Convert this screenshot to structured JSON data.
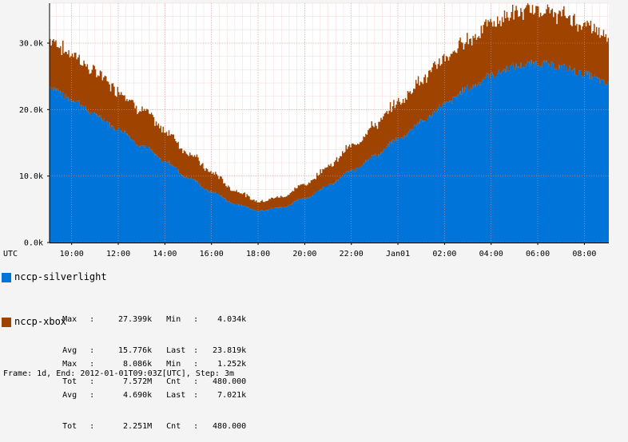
{
  "chart_data": {
    "type": "area",
    "stacked": true,
    "timezone_label": "UTC",
    "x_ticks": [
      "10:00",
      "12:00",
      "14:00",
      "16:00",
      "18:00",
      "20:00",
      "22:00",
      "Jan01",
      "02:00",
      "04:00",
      "06:00",
      "08:00"
    ],
    "y_ticks": [
      "0.0k",
      "10.0k",
      "20.0k",
      "30.0k"
    ],
    "ylim": [
      0,
      36000
    ],
    "grid": true,
    "x_start": "2011-12-31T09:03Z",
    "x_end": "2012-01-01T09:03Z",
    "series": [
      {
        "name": "nccp-silverlight",
        "color": "#0074d9",
        "points": [
          [
            "2011-12-31T09:03Z",
            23400
          ],
          [
            "2011-12-31T10:00Z",
            21500
          ],
          [
            "2011-12-31T11:00Z",
            19200
          ],
          [
            "2011-12-31T12:00Z",
            17000
          ],
          [
            "2011-12-31T13:00Z",
            14600
          ],
          [
            "2011-12-31T14:00Z",
            12200
          ],
          [
            "2011-12-31T15:00Z",
            9700
          ],
          [
            "2011-12-31T16:00Z",
            7600
          ],
          [
            "2011-12-31T17:00Z",
            5800
          ],
          [
            "2011-12-31T18:00Z",
            4800
          ],
          [
            "2011-12-31T19:00Z",
            5300
          ],
          [
            "2011-12-31T20:00Z",
            6700
          ],
          [
            "2011-12-31T21:00Z",
            8600
          ],
          [
            "2011-12-31T22:00Z",
            10800
          ],
          [
            "2011-12-31T23:00Z",
            13100
          ],
          [
            "2012-01-01T00:00Z",
            15600
          ],
          [
            "2012-01-01T01:00Z",
            18200
          ],
          [
            "2012-01-01T02:00Z",
            20800
          ],
          [
            "2012-01-01T03:00Z",
            23200
          ],
          [
            "2012-01-01T04:00Z",
            25200
          ],
          [
            "2012-01-01T05:00Z",
            26500
          ],
          [
            "2012-01-01T06:00Z",
            27000
          ],
          [
            "2012-01-01T07:00Z",
            26400
          ],
          [
            "2012-01-01T08:00Z",
            25300
          ],
          [
            "2012-01-01T09:03Z",
            23800
          ]
        ]
      },
      {
        "name": "nccp-xbox",
        "color": "#9f4400",
        "points": [
          [
            "2011-12-31T09:03Z",
            7100
          ],
          [
            "2011-12-31T10:00Z",
            6800
          ],
          [
            "2011-12-31T11:00Z",
            6400
          ],
          [
            "2011-12-31T12:00Z",
            5900
          ],
          [
            "2011-12-31T13:00Z",
            5300
          ],
          [
            "2011-12-31T14:00Z",
            4600
          ],
          [
            "2011-12-31T15:00Z",
            3800
          ],
          [
            "2011-12-31T16:00Z",
            2900
          ],
          [
            "2011-12-31T17:00Z",
            2000
          ],
          [
            "2011-12-31T18:00Z",
            1400
          ],
          [
            "2011-12-31T19:00Z",
            1600
          ],
          [
            "2011-12-31T20:00Z",
            2100
          ],
          [
            "2011-12-31T21:00Z",
            2900
          ],
          [
            "2011-12-31T22:00Z",
            3700
          ],
          [
            "2011-12-31T23:00Z",
            4600
          ],
          [
            "2012-01-01T00:00Z",
            5500
          ],
          [
            "2012-01-01T01:00Z",
            6300
          ],
          [
            "2012-01-01T02:00Z",
            6900
          ],
          [
            "2012-01-01T03:00Z",
            7400
          ],
          [
            "2012-01-01T04:00Z",
            7800
          ],
          [
            "2012-01-01T05:00Z",
            8000
          ],
          [
            "2012-01-01T06:00Z",
            8000
          ],
          [
            "2012-01-01T07:00Z",
            7800
          ],
          [
            "2012-01-01T08:00Z",
            7400
          ],
          [
            "2012-01-01T09:03Z",
            7000
          ]
        ]
      }
    ]
  },
  "legend": [
    {
      "name": "nccp-silverlight",
      "color": "#0074d9",
      "stats": {
        "max_label": "Max",
        "max": "27.399k",
        "min_label": "Min",
        "min": "4.034k",
        "avg_label": "Avg",
        "avg": "15.776k",
        "last_label": "Last",
        "last": "23.819k",
        "tot_label": "Tot",
        "tot": "7.572M",
        "cnt_label": "Cnt",
        "cnt": "480.000"
      }
    },
    {
      "name": "nccp-xbox",
      "color": "#9f4400",
      "stats": {
        "max_label": "Max",
        "max": "8.086k",
        "min_label": "Min",
        "min": "1.252k",
        "avg_label": "Avg",
        "avg": "4.690k",
        "last_label": "Last",
        "last": "7.021k",
        "tot_label": "Tot",
        "tot": "2.251M",
        "cnt_label": "Cnt",
        "cnt": "480.000"
      }
    }
  ],
  "footer": "Frame: 1d, End: 2012-01-01T09:03Z[UTC], Step: 3m"
}
